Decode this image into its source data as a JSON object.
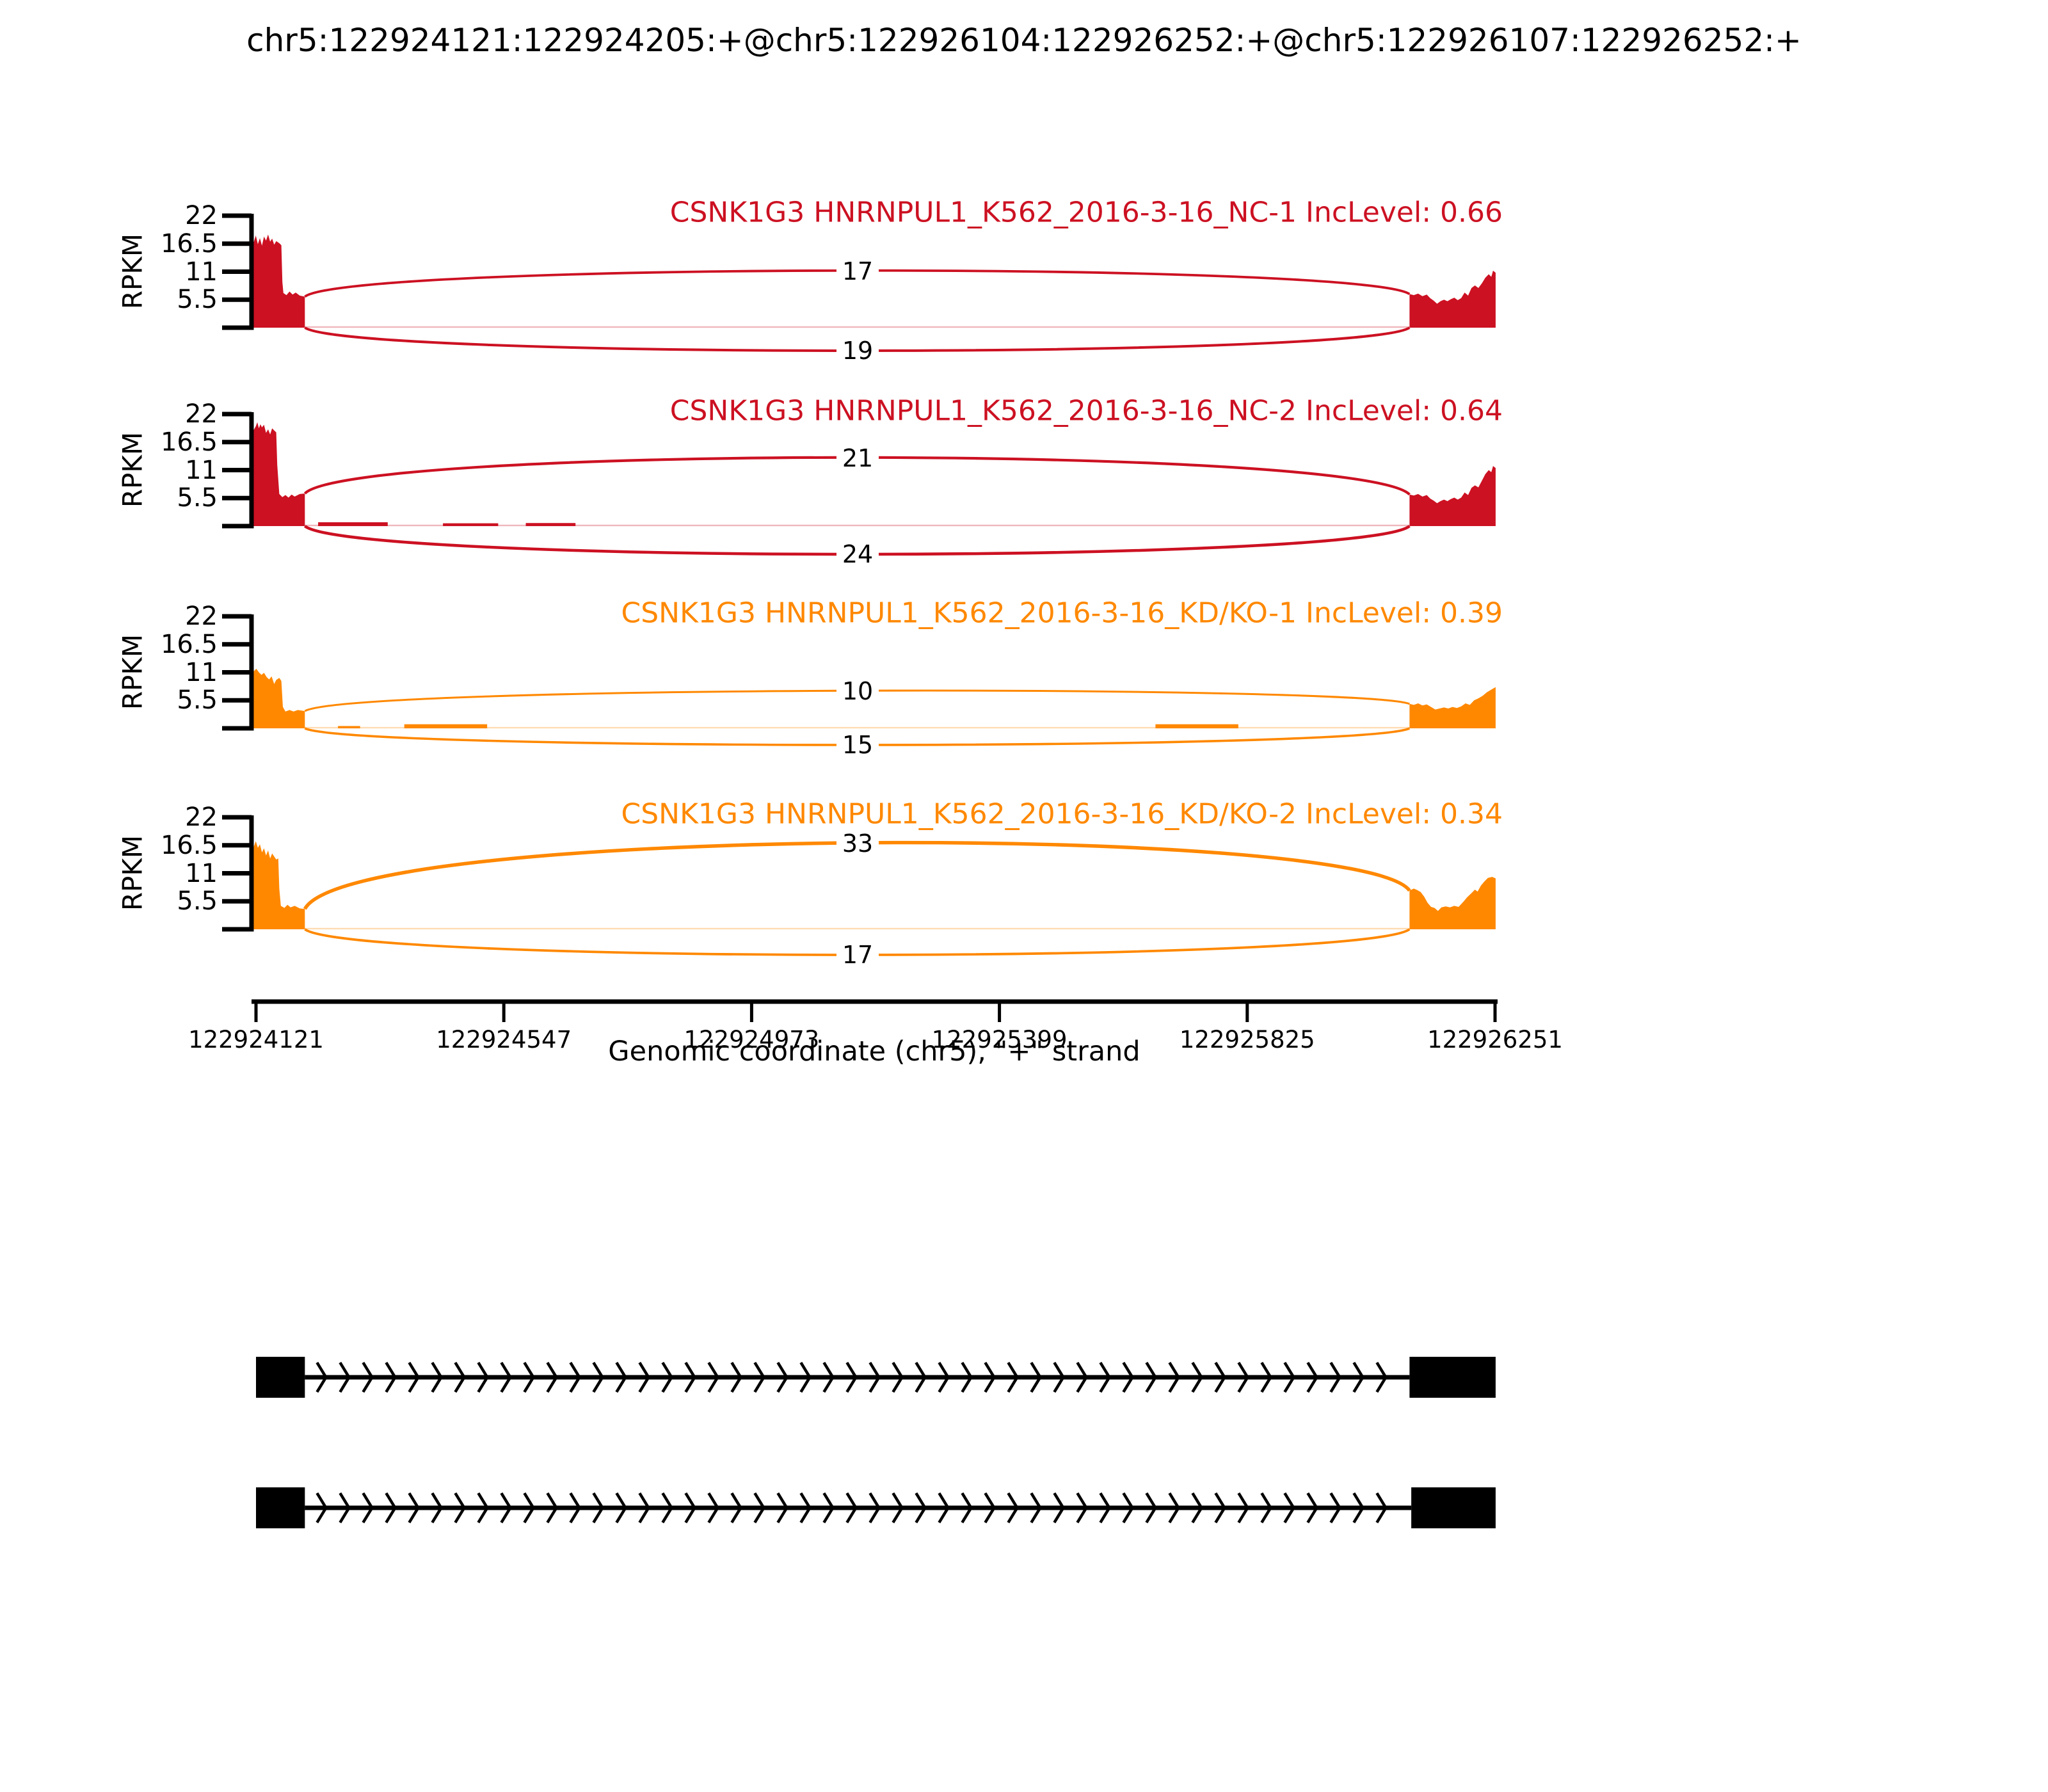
{
  "chart_data": {
    "type": "sashimi",
    "title": "chr5:122924121:122924205:+@chr5:122926104:122926252:+@chr5:122926107:122926252:+",
    "xlabel": "Genomic coordinate (chr5), \"+\" strand",
    "ylabel": "RPKM",
    "x_ticks": [
      "122924121",
      "122924547",
      "122924973",
      "122925399",
      "122925825",
      "122926251"
    ],
    "x_range": [
      122924121,
      122926251
    ],
    "y_ticks": [
      "22",
      "16.5",
      "11",
      "5.5"
    ],
    "y_max": 22,
    "grid": false,
    "colors": {
      "group1": "#CC1122",
      "group2": "#FF8800",
      "isoform": "#000000"
    },
    "coverage_regions": {
      "left": [
        122924121,
        122924205
      ],
      "right": [
        122926104,
        122926252
      ]
    },
    "tracks": [
      {
        "label": "CSNK1G3 HNRNPUL1_K562_2016-3-16_NC-1",
        "inc_level": "0.66",
        "color": "#CC1122",
        "junctions": [
          {
            "count": 17,
            "side": "top"
          },
          {
            "count": 19,
            "side": "bottom"
          }
        ],
        "coverage_left": [
          [
            0,
            16.8
          ],
          [
            0.04,
            18.1
          ],
          [
            0.08,
            16.4
          ],
          [
            0.12,
            17.6
          ],
          [
            0.16,
            16.1
          ],
          [
            0.2,
            17.9
          ],
          [
            0.24,
            17.1
          ],
          [
            0.28,
            18.3
          ],
          [
            0.32,
            16.9
          ],
          [
            0.36,
            17.5
          ],
          [
            0.4,
            16.3
          ],
          [
            0.44,
            17.0
          ],
          [
            0.5,
            16.6
          ],
          [
            0.54,
            16.2
          ],
          [
            0.56,
            9.0
          ],
          [
            0.58,
            6.8
          ],
          [
            0.64,
            6.4
          ],
          [
            0.7,
            7.1
          ],
          [
            0.76,
            6.5
          ],
          [
            0.82,
            6.9
          ],
          [
            0.9,
            6.3
          ],
          [
            1,
            6.1
          ]
        ],
        "coverage_right": [
          [
            0,
            6.6
          ],
          [
            0.05,
            6.4
          ],
          [
            0.1,
            6.7
          ],
          [
            0.15,
            6.2
          ],
          [
            0.2,
            6.5
          ],
          [
            0.24,
            5.8
          ],
          [
            0.28,
            5.3
          ],
          [
            0.32,
            4.7
          ],
          [
            0.36,
            5.2
          ],
          [
            0.4,
            5.5
          ],
          [
            0.44,
            5.2
          ],
          [
            0.48,
            5.6
          ],
          [
            0.52,
            5.9
          ],
          [
            0.56,
            5.4
          ],
          [
            0.6,
            5.8
          ],
          [
            0.64,
            6.9
          ],
          [
            0.68,
            6.3
          ],
          [
            0.72,
            7.8
          ],
          [
            0.76,
            8.3
          ],
          [
            0.8,
            7.8
          ],
          [
            0.84,
            8.7
          ],
          [
            0.88,
            9.8
          ],
          [
            0.92,
            10.5
          ],
          [
            0.95,
            10.0
          ],
          [
            0.97,
            11.2
          ],
          [
            1,
            10.8
          ]
        ],
        "intron_blips": []
      },
      {
        "label": "CSNK1G3 HNRNPUL1_K562_2016-3-16_NC-2",
        "inc_level": "0.64",
        "color": "#CC1122",
        "junctions": [
          {
            "count": 21,
            "side": "top"
          },
          {
            "count": 24,
            "side": "bottom"
          }
        ],
        "coverage_left": [
          [
            0,
            18.9
          ],
          [
            0.04,
            19.6
          ],
          [
            0.07,
            20.4
          ],
          [
            0.1,
            19.2
          ],
          [
            0.13,
            20.0
          ],
          [
            0.16,
            19.4
          ],
          [
            0.2,
            19.9
          ],
          [
            0.24,
            18.3
          ],
          [
            0.28,
            19.0
          ],
          [
            0.32,
            18.0
          ],
          [
            0.36,
            19.2
          ],
          [
            0.4,
            18.8
          ],
          [
            0.44,
            18.4
          ],
          [
            0.46,
            12.0
          ],
          [
            0.5,
            6.3
          ],
          [
            0.56,
            5.7
          ],
          [
            0.62,
            6.1
          ],
          [
            0.68,
            5.6
          ],
          [
            0.74,
            6.2
          ],
          [
            0.8,
            5.8
          ],
          [
            0.9,
            6.3
          ],
          [
            1,
            6.4
          ]
        ],
        "coverage_right": [
          [
            0,
            6.2
          ],
          [
            0.05,
            6.0
          ],
          [
            0.1,
            6.3
          ],
          [
            0.15,
            5.8
          ],
          [
            0.2,
            6.1
          ],
          [
            0.24,
            5.4
          ],
          [
            0.28,
            5.0
          ],
          [
            0.32,
            4.5
          ],
          [
            0.36,
            4.9
          ],
          [
            0.4,
            5.2
          ],
          [
            0.44,
            4.9
          ],
          [
            0.48,
            5.3
          ],
          [
            0.52,
            5.6
          ],
          [
            0.56,
            5.2
          ],
          [
            0.6,
            5.6
          ],
          [
            0.64,
            6.6
          ],
          [
            0.68,
            6.1
          ],
          [
            0.72,
            7.5
          ],
          [
            0.76,
            8.0
          ],
          [
            0.8,
            7.6
          ],
          [
            0.84,
            8.9
          ],
          [
            0.88,
            10.2
          ],
          [
            0.92,
            11.0
          ],
          [
            0.95,
            10.6
          ],
          [
            0.97,
            11.8
          ],
          [
            1,
            11.4
          ]
        ],
        "intron_blips": [
          [
            0.012,
            0.075,
            0.75
          ],
          [
            0.125,
            0.175,
            0.55
          ],
          [
            0.2,
            0.245,
            0.6
          ]
        ]
      },
      {
        "label": "CSNK1G3 HNRNPUL1_K562_2016-3-16_KD/KO-1",
        "inc_level": "0.39",
        "color": "#FF8800",
        "junctions": [
          {
            "count": 10,
            "side": "top"
          },
          {
            "count": 15,
            "side": "bottom"
          }
        ],
        "coverage_left": [
          [
            0,
            11.2
          ],
          [
            0.05,
            11.7
          ],
          [
            0.1,
            11.0
          ],
          [
            0.15,
            10.5
          ],
          [
            0.2,
            10.9
          ],
          [
            0.25,
            10.1
          ],
          [
            0.3,
            9.6
          ],
          [
            0.35,
            10.2
          ],
          [
            0.4,
            8.7
          ],
          [
            0.44,
            9.5
          ],
          [
            0.5,
            9.9
          ],
          [
            0.54,
            9.3
          ],
          [
            0.57,
            4.2
          ],
          [
            0.62,
            3.3
          ],
          [
            0.7,
            3.6
          ],
          [
            0.78,
            3.3
          ],
          [
            0.86,
            3.6
          ],
          [
            1,
            3.4
          ]
        ],
        "coverage_right": [
          [
            0,
            4.8
          ],
          [
            0.05,
            4.6
          ],
          [
            0.1,
            4.9
          ],
          [
            0.15,
            4.5
          ],
          [
            0.2,
            4.7
          ],
          [
            0.25,
            4.2
          ],
          [
            0.3,
            3.7
          ],
          [
            0.35,
            3.9
          ],
          [
            0.4,
            4.1
          ],
          [
            0.45,
            3.9
          ],
          [
            0.5,
            4.2
          ],
          [
            0.55,
            4.0
          ],
          [
            0.6,
            4.3
          ],
          [
            0.65,
            4.9
          ],
          [
            0.7,
            4.6
          ],
          [
            0.75,
            5.5
          ],
          [
            0.8,
            5.9
          ],
          [
            0.85,
            6.4
          ],
          [
            0.9,
            7.1
          ],
          [
            0.95,
            7.6
          ],
          [
            1,
            8.1
          ]
        ],
        "intron_blips": [
          [
            0.03,
            0.05,
            0.45
          ],
          [
            0.09,
            0.165,
            0.8
          ],
          [
            0.77,
            0.845,
            0.8
          ]
        ]
      },
      {
        "label": "CSNK1G3 HNRNPUL1_K562_2016-3-16_KD/KO-2",
        "inc_level": "0.34",
        "color": "#FF8800",
        "junctions": [
          {
            "count": 33,
            "side": "top"
          },
          {
            "count": 17,
            "side": "bottom"
          }
        ],
        "coverage_left": [
          [
            0,
            16.2
          ],
          [
            0.04,
            17.3
          ],
          [
            0.08,
            16.0
          ],
          [
            0.12,
            16.7
          ],
          [
            0.16,
            15.1
          ],
          [
            0.2,
            15.9
          ],
          [
            0.24,
            14.5
          ],
          [
            0.28,
            15.5
          ],
          [
            0.32,
            13.9
          ],
          [
            0.36,
            14.9
          ],
          [
            0.4,
            14.3
          ],
          [
            0.44,
            13.7
          ],
          [
            0.48,
            13.9
          ],
          [
            0.5,
            8.0
          ],
          [
            0.53,
            4.6
          ],
          [
            0.6,
            4.2
          ],
          [
            0.66,
            4.8
          ],
          [
            0.72,
            4.3
          ],
          [
            0.8,
            4.6
          ],
          [
            0.9,
            4.1
          ],
          [
            1,
            4.0
          ]
        ],
        "coverage_right": [
          [
            0,
            7.6
          ],
          [
            0.05,
            8.0
          ],
          [
            0.09,
            7.7
          ],
          [
            0.13,
            7.3
          ],
          [
            0.17,
            6.4
          ],
          [
            0.21,
            5.2
          ],
          [
            0.25,
            4.4
          ],
          [
            0.29,
            4.2
          ],
          [
            0.33,
            3.6
          ],
          [
            0.37,
            4.3
          ],
          [
            0.42,
            4.5
          ],
          [
            0.47,
            4.3
          ],
          [
            0.52,
            4.6
          ],
          [
            0.57,
            4.4
          ],
          [
            0.62,
            5.3
          ],
          [
            0.67,
            6.3
          ],
          [
            0.72,
            7.1
          ],
          [
            0.76,
            7.8
          ],
          [
            0.79,
            7.4
          ],
          [
            0.83,
            8.6
          ],
          [
            0.87,
            9.4
          ],
          [
            0.91,
            10.1
          ],
          [
            0.96,
            10.3
          ],
          [
            1,
            10.0
          ]
        ],
        "intron_blips": []
      }
    ],
    "isoforms": [
      {
        "exons": [
          [
            122924121,
            122924205
          ],
          [
            122926104,
            122926252
          ]
        ],
        "strand": "+"
      },
      {
        "exons": [
          [
            122924121,
            122924205
          ],
          [
            122926107,
            122926252
          ]
        ],
        "strand": "+"
      }
    ]
  }
}
